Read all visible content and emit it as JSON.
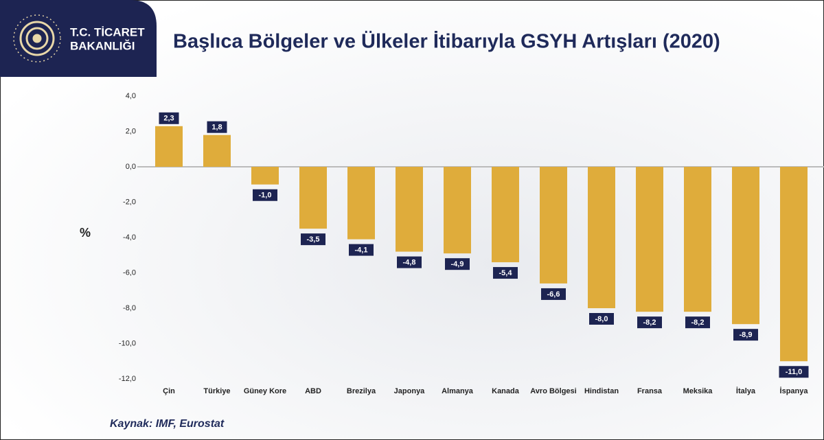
{
  "logo": {
    "line1": "T.C. TİCARET",
    "line2": "BAKANLIĞI"
  },
  "chart_data": {
    "type": "bar",
    "title": "Başlıca Bölgeler ve Ülkeler İtibarıyla GSYH Artışları (2020)",
    "y_label": "%",
    "source": "Kaynak: IMF, Eurostat",
    "categories": [
      "Çin",
      "Türkiye",
      "Güney Kore",
      "ABD",
      "Brezilya",
      "Japonya",
      "Almanya",
      "Kanada",
      "Avro Bölgesi",
      "Hindistan",
      "Fransa",
      "Meksika",
      "İtalya",
      "İspanya"
    ],
    "values": [
      2.3,
      1.8,
      -1.0,
      -3.5,
      -4.1,
      -4.8,
      -4.9,
      -5.4,
      -6.6,
      -8.0,
      -8.2,
      -8.2,
      -8.9,
      -11.0
    ],
    "value_labels": [
      "2,3",
      "1,8",
      "-1,0",
      "-3,5",
      "-4,1",
      "-4,8",
      "-4,9",
      "-5,4",
      "-6,6",
      "-8,0",
      "-8,2",
      "-8,2",
      "-8,9",
      "-11,0"
    ],
    "color": "#dfac3b",
    "ylim": [
      -12,
      4
    ],
    "yticks": [
      {
        "value": 4,
        "label": "4,0"
      },
      {
        "value": 2,
        "label": "2,0"
      },
      {
        "value": 0,
        "label": "0,0"
      },
      {
        "value": -2,
        "label": "-2,0"
      },
      {
        "value": -4,
        "label": "-4,0"
      },
      {
        "value": -6,
        "label": "-6,0"
      },
      {
        "value": -8,
        "label": "-8,0"
      },
      {
        "value": -10,
        "label": "-10,0"
      },
      {
        "value": -12,
        "label": "-12,0"
      }
    ],
    "grid": false
  }
}
